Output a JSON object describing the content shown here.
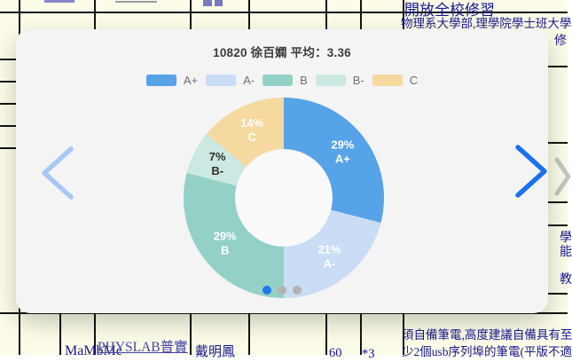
{
  "modal": {
    "title": "10820 徐百嫻 平均：3.36",
    "pagination": {
      "count": 3,
      "active": 0
    }
  },
  "chart_data": {
    "type": "pie",
    "donut": true,
    "title": "10820 徐百嫻 平均：3.36",
    "categories": [
      "A+",
      "A-",
      "B",
      "B-",
      "C"
    ],
    "values": [
      29,
      21,
      29,
      7,
      14
    ],
    "unit": "%",
    "colors": [
      "#57A3E8",
      "#C9DDF4",
      "#93D1C7",
      "#CBE8E2",
      "#F6D99F"
    ],
    "label_colors": [
      "#FFFFFF",
      "#FFFFFF",
      "#FFFFFF",
      "#2E2E2E",
      "#FFFFFF"
    ],
    "legend_position": "top",
    "start_angle": "top",
    "direction": "clockwise",
    "segment_labels": [
      "29% A+",
      "21% A-",
      "29% B",
      "7% B-",
      "14% C"
    ]
  },
  "background": {
    "top_right_row1": "開放全校修習",
    "top_right_row2": "物理系大學部,理學院學士班大學",
    "top_right_row2_wrap": "修",
    "right_edge_chars": [
      "學",
      "能",
      "教"
    ],
    "bottom": {
      "course_code": "MaMbMc",
      "course_link": "PHYSLAB普實",
      "teacher": "戴明鳳",
      "seats": "60",
      "credits": "*3",
      "note_line1": "須自備筆電,高度建議自備具有至",
      "note_line2": "少2個usb序列埠的筆電(平版不適"
    }
  },
  "colors": {
    "arrow_next": "#1C72EE",
    "arrow_prev": "#A9C8F3",
    "bg_chevron": "#C6C6C6",
    "dot_active": "#2276F0",
    "dot_inactive": "#B3B3B3",
    "modal_bg": "#F4F4F5",
    "donut_hole": "#F9F9FA",
    "table_bg": "#FCFCE8",
    "table_border": "#141414",
    "navy_text": "#181890",
    "link_purple": "#4444AA"
  }
}
